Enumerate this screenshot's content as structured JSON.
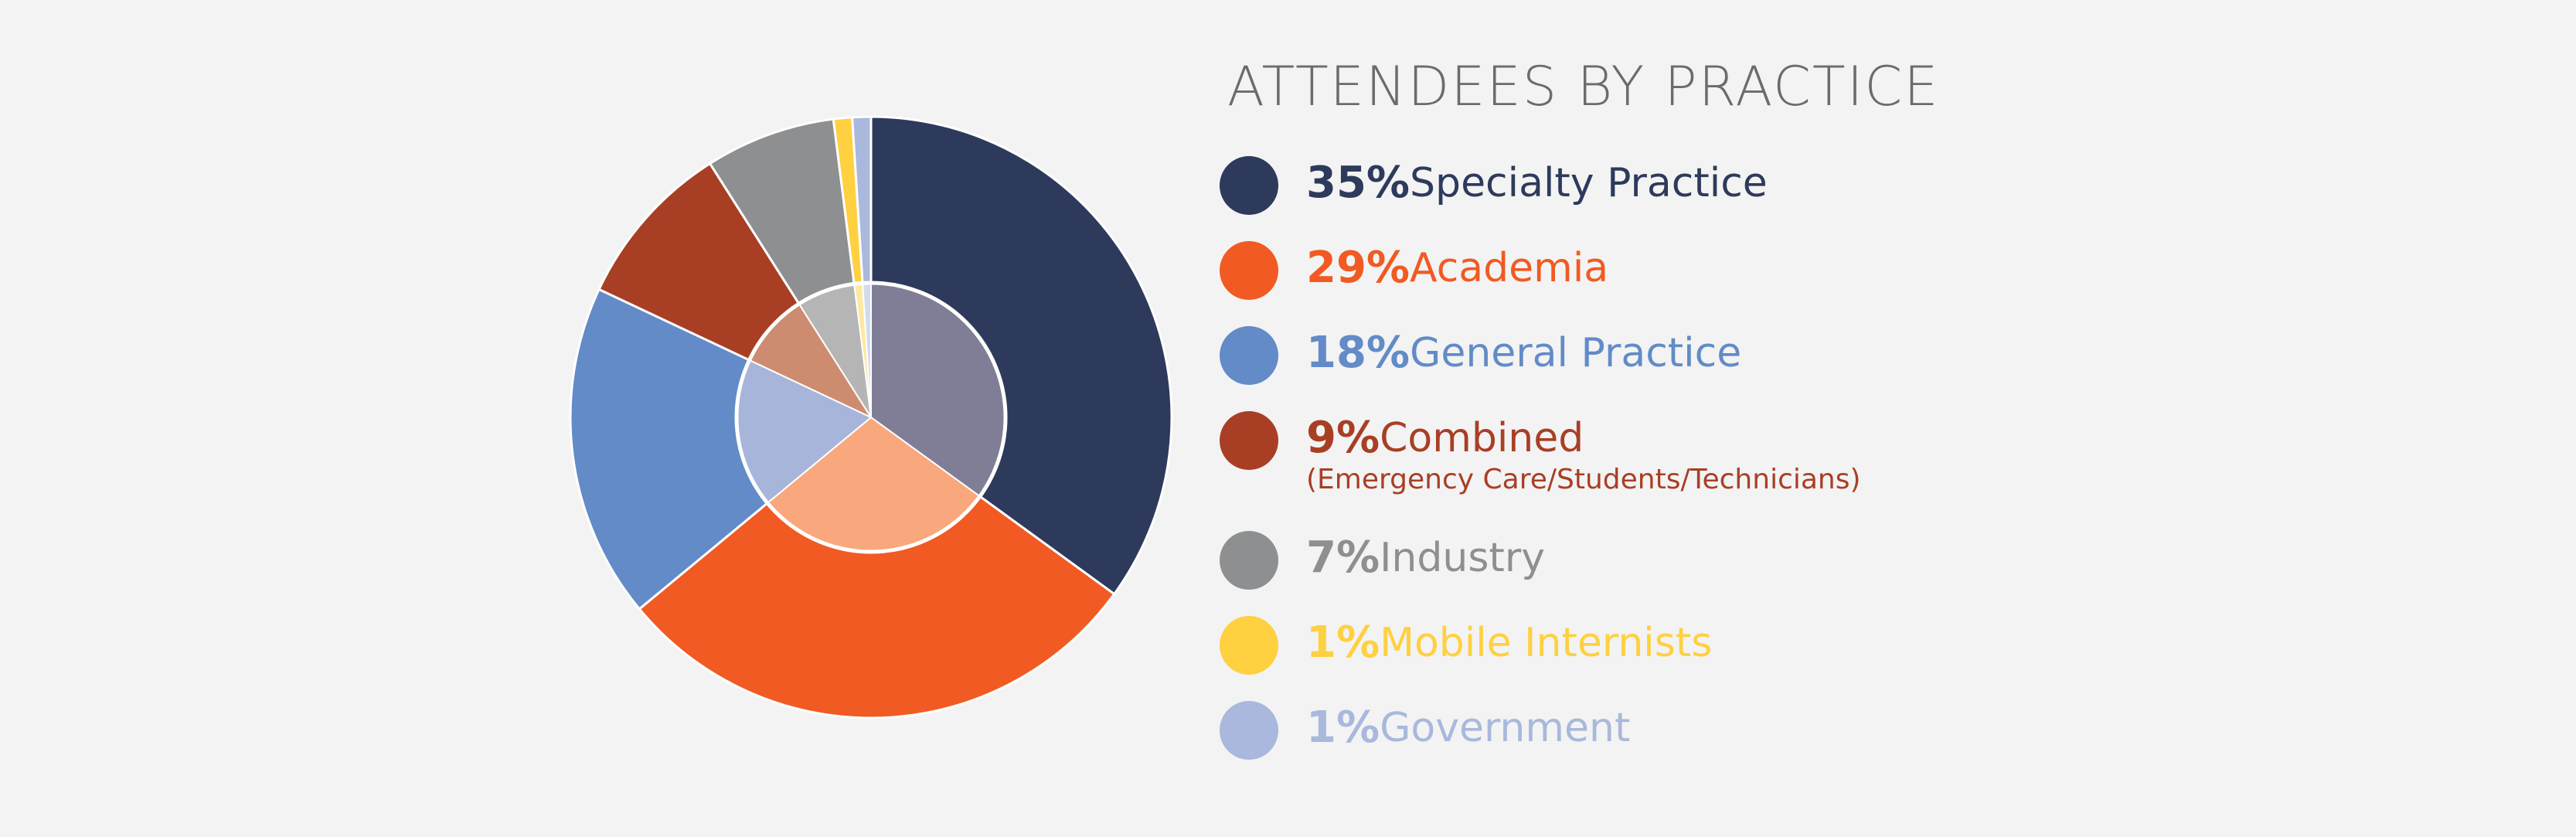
{
  "chart_data": {
    "type": "pie",
    "title": "ATTENDEES BY PRACTICE",
    "categories": [
      "Specialty Practice",
      "Academia",
      "General Practice",
      "Combined",
      "Industry",
      "Mobile Internists",
      "Government"
    ],
    "values": [
      35,
      29,
      18,
      9,
      7,
      1,
      1
    ],
    "value_labels": [
      "35%",
      "29%",
      "18%",
      "9%",
      "7%",
      "1%",
      "1%"
    ],
    "notes": [
      null,
      null,
      null,
      "(Emergency Care/Students/Technicians)",
      null,
      null,
      null
    ],
    "colors": [
      "#2d3a5c",
      "#f15a22",
      "#628bc7",
      "#a83f25",
      "#8d8f90",
      "#ffd040",
      "#a9b8dc"
    ],
    "inner_colors": [
      "#807e96",
      "#f8a87c",
      "#a8b5da",
      "#cd8c70",
      "#b5b5b5",
      "#fde9a0",
      "#d3dbee"
    ],
    "legend": "right"
  }
}
